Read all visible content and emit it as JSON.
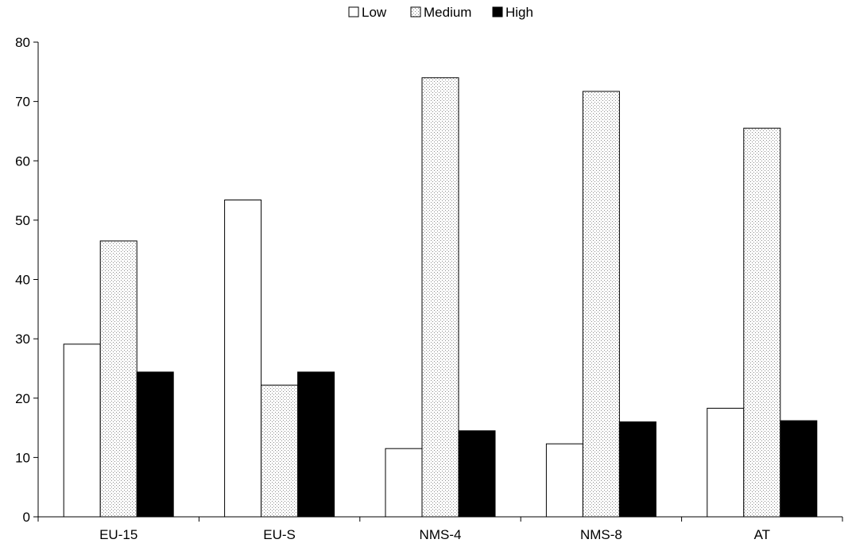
{
  "chart_data": {
    "type": "bar",
    "title": "",
    "xlabel": "",
    "ylabel": "",
    "categories": [
      "EU-15",
      "EU-S",
      "NMS-4",
      "NMS-8",
      "AT"
    ],
    "series": [
      {
        "name": "Low",
        "fill": "white",
        "values": [
          29.1,
          53.4,
          11.5,
          12.3,
          18.3
        ]
      },
      {
        "name": "Medium",
        "fill": "dotted",
        "values": [
          46.5,
          22.2,
          74.0,
          71.7,
          65.5
        ]
      },
      {
        "name": "High",
        "fill": "black",
        "values": [
          24.4,
          24.4,
          14.5,
          16.0,
          16.2
        ]
      }
    ],
    "ylim": [
      0,
      80
    ],
    "yticks": [
      0,
      10,
      20,
      30,
      40,
      50,
      60,
      70,
      80
    ],
    "grid": false,
    "legend_position": "top-center",
    "colors": {
      "low": "#ffffff",
      "medium_dot": "#8a8a8a",
      "high": "#000000",
      "axis": "#000000"
    }
  }
}
